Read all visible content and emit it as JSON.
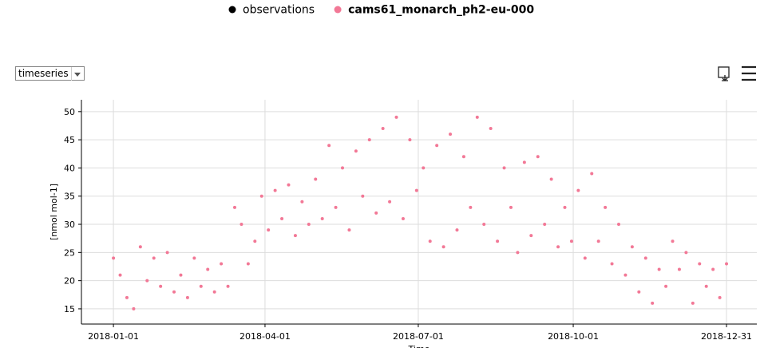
{
  "toolbar": {
    "selector": "timeseries"
  },
  "chart_data": {
    "type": "scatter",
    "y_label": "[nmol mol-1]",
    "x_label": "Time",
    "series": [
      {
        "name": "observations",
        "color": "#000000",
        "x": [],
        "values": []
      },
      {
        "name": "cams61_monarch_ph2-eu-000",
        "color": "#f27896",
        "x": [
          "2018-01-01",
          "2018-01-05",
          "2018-01-09",
          "2018-01-13",
          "2018-01-17",
          "2018-01-21",
          "2018-01-25",
          "2018-01-29",
          "2018-02-02",
          "2018-02-06",
          "2018-02-10",
          "2018-02-14",
          "2018-02-18",
          "2018-02-22",
          "2018-02-26",
          "2018-03-02",
          "2018-03-06",
          "2018-03-10",
          "2018-03-14",
          "2018-03-18",
          "2018-03-22",
          "2018-03-26",
          "2018-03-30",
          "2018-04-03",
          "2018-04-07",
          "2018-04-11",
          "2018-04-15",
          "2018-04-19",
          "2018-04-23",
          "2018-04-27",
          "2018-05-01",
          "2018-05-05",
          "2018-05-09",
          "2018-05-13",
          "2018-05-17",
          "2018-05-21",
          "2018-05-25",
          "2018-05-29",
          "2018-06-02",
          "2018-06-06",
          "2018-06-10",
          "2018-06-14",
          "2018-06-18",
          "2018-06-22",
          "2018-06-26",
          "2018-06-30",
          "2018-07-04",
          "2018-07-08",
          "2018-07-12",
          "2018-07-16",
          "2018-07-20",
          "2018-07-24",
          "2018-07-28",
          "2018-08-01",
          "2018-08-05",
          "2018-08-09",
          "2018-08-13",
          "2018-08-17",
          "2018-08-21",
          "2018-08-25",
          "2018-08-29",
          "2018-09-02",
          "2018-09-06",
          "2018-09-10",
          "2018-09-14",
          "2018-09-18",
          "2018-09-22",
          "2018-09-26",
          "2018-09-30",
          "2018-10-04",
          "2018-10-08",
          "2018-10-12",
          "2018-10-16",
          "2018-10-20",
          "2018-10-24",
          "2018-10-28",
          "2018-11-01",
          "2018-11-05",
          "2018-11-09",
          "2018-11-13",
          "2018-11-17",
          "2018-11-21",
          "2018-11-25",
          "2018-11-29",
          "2018-12-03",
          "2018-12-07",
          "2018-12-11",
          "2018-12-15",
          "2018-12-19",
          "2018-12-23",
          "2018-12-27",
          "2018-12-31"
        ],
        "values": [
          24,
          21,
          17,
          15,
          26,
          20,
          24,
          19,
          25,
          18,
          21,
          17,
          24,
          19,
          22,
          18,
          23,
          19,
          33,
          30,
          23,
          27,
          35,
          29,
          36,
          31,
          37,
          28,
          34,
          30,
          38,
          31,
          44,
          33,
          40,
          29,
          43,
          35,
          45,
          32,
          47,
          34,
          49,
          31,
          45,
          36,
          40,
          27,
          44,
          26,
          46,
          29,
          42,
          33,
          49,
          30,
          47,
          27,
          40,
          33,
          25,
          41,
          28,
          42,
          30,
          38,
          26,
          33,
          27,
          36,
          24,
          39,
          27,
          33,
          23,
          30,
          21,
          26,
          18,
          24,
          16,
          22,
          19,
          27,
          22,
          25,
          16,
          23,
          19,
          22,
          17,
          23
        ]
      }
    ],
    "xlim": [
      "2017-12-13",
      "2019-01-18"
    ],
    "xticks": [
      "2018-01-01",
      "2018-04-01",
      "2018-07-01",
      "2018-10-01",
      "2018-12-31"
    ],
    "ylim": [
      12.3,
      52.1
    ],
    "yticks": [
      15,
      20,
      25,
      30,
      35,
      40,
      45,
      50
    ],
    "grid": true
  }
}
